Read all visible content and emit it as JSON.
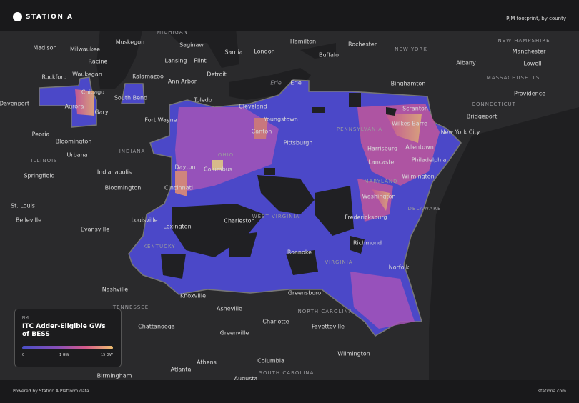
{
  "header": {
    "brand": "STATION A",
    "subtitle": "PJM footprint, by county"
  },
  "places": [
    "MICHIGAN",
    "Madison",
    "Milwaukee",
    "Muskegon",
    "Saginaw",
    "Sarnia",
    "London",
    "Hamilton",
    "Rochester",
    "NEW YORK",
    "NEW HAMPSHIRE",
    "Manchester",
    "Buffalo",
    "Albany",
    "Lowell",
    "Racine",
    "Lansing",
    "Flint",
    "Waukegan",
    "Kalamazoo",
    "Detroit",
    "Rockford",
    "Ann Arbor",
    "Erie",
    "Erie",
    "Binghamton",
    "MASSACHUSETTS",
    "Providence",
    "Chicago",
    "South Bend",
    "Toledo",
    "Cleveland",
    "CONNECTICUT",
    "Davenport",
    "Aurora",
    "Gary",
    "Scranton",
    "Bridgeport",
    "Fort Wayne",
    "Youngstown",
    "Wilkes-Barre",
    "New York City",
    "PENNSYLVANIA",
    "Peoria",
    "Canton",
    "Bloomington",
    "Pittsburgh",
    "Harrisburg",
    "Allentown",
    "INDIANA",
    "Urbana",
    "OHIO",
    "Philadelphia",
    "ILLINOIS",
    "Lancaster",
    "Dayton",
    "Columbus",
    "Indianapolis",
    "Springfield",
    "Wilmington",
    "MARYLAND",
    "Cincinnati",
    "Bloomington",
    "Washington",
    "St. Louis",
    "DELAWARE",
    "WEST VIRGINIA",
    "Belleville",
    "Louisville",
    "Charleston",
    "Fredericksburg",
    "Lexington",
    "Evansville",
    "Richmond",
    "KENTUCKY",
    "Roanoke",
    "VIRGINIA",
    "Norfolk",
    "Nashville",
    "Greensboro",
    "Knoxville",
    "TENNESSEE",
    "Asheville",
    "NORTH CAROLINA",
    "Charlotte",
    "Chattanooga",
    "Fayetteville",
    "Greenville",
    "Wilmington",
    "Athens",
    "Columbia",
    "Atlanta",
    "SOUTH CAROLINA",
    "Birmingham",
    "Augusta"
  ],
  "legend": {
    "region": "PJM",
    "title": "ITC Adder-Eligible GWs of BESS",
    "ticks": [
      "0",
      "1 GW",
      "15 GW"
    ]
  },
  "footer": {
    "left": "Powered by Station A Platform data.",
    "right": "stationa.com"
  }
}
